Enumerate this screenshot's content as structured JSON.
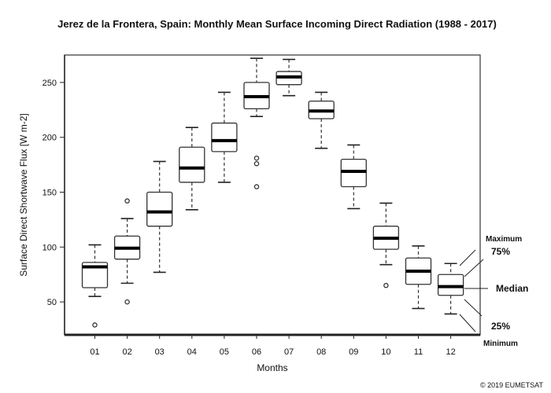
{
  "chart_data": {
    "type": "boxplot",
    "title": "Jerez de la Frontera, Spain: Monthly Mean Surface Incoming Direct Radiation (1988 - 2017)",
    "xlabel": "Months",
    "ylabel": "Surface Direct Shortwave Flux [W m-2]",
    "categories": [
      "01",
      "02",
      "03",
      "04",
      "05",
      "06",
      "07",
      "08",
      "09",
      "10",
      "11",
      "12"
    ],
    "ylim": [
      20,
      275
    ],
    "yticks": [
      50,
      100,
      150,
      200,
      250
    ],
    "series": [
      {
        "month": "01",
        "min": 55,
        "q1": 63,
        "median": 82,
        "q3": 86,
        "max": 102,
        "outliers": [
          29
        ]
      },
      {
        "month": "02",
        "min": 67,
        "q1": 89,
        "median": 99,
        "q3": 110,
        "max": 126,
        "outliers": [
          142,
          50
        ]
      },
      {
        "month": "03",
        "min": 77,
        "q1": 119,
        "median": 132,
        "q3": 150,
        "max": 178,
        "outliers": []
      },
      {
        "month": "04",
        "min": 134,
        "q1": 159,
        "median": 172,
        "q3": 191,
        "max": 209,
        "outliers": []
      },
      {
        "month": "05",
        "min": 159,
        "q1": 187,
        "median": 197,
        "q3": 213,
        "max": 241,
        "outliers": []
      },
      {
        "month": "06",
        "min": 219,
        "q1": 226,
        "median": 237,
        "q3": 250,
        "max": 272,
        "outliers": [
          181,
          176,
          155
        ]
      },
      {
        "month": "07",
        "min": 238,
        "q1": 248,
        "median": 255,
        "q3": 260,
        "max": 271,
        "outliers": []
      },
      {
        "month": "08",
        "min": 190,
        "q1": 217,
        "median": 224,
        "q3": 233,
        "max": 241,
        "outliers": []
      },
      {
        "month": "09",
        "min": 135,
        "q1": 155,
        "median": 169,
        "q3": 180,
        "max": 193,
        "outliers": []
      },
      {
        "month": "10",
        "min": 84,
        "q1": 98,
        "median": 108,
        "q3": 119,
        "max": 140,
        "outliers": [
          65
        ]
      },
      {
        "month": "11",
        "min": 44,
        "q1": 66,
        "median": 78,
        "q3": 90,
        "max": 101,
        "outliers": []
      },
      {
        "month": "12",
        "min": 39,
        "q1": 56,
        "median": 64,
        "q3": 75,
        "max": 85,
        "outliers": []
      }
    ],
    "legend": {
      "maximum": "Maximum",
      "p75": "75%",
      "median": "Median",
      "p25": "25%",
      "minimum": "Minimum"
    },
    "copyright": "© 2019 EUMETSAT"
  }
}
